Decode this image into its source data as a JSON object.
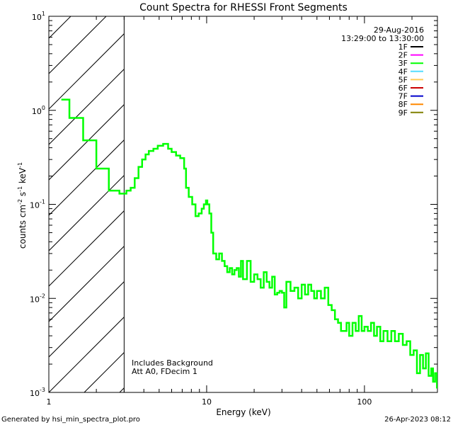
{
  "chart_data": {
    "type": "line",
    "title": "Count Spectra for RHESSI Front Segments",
    "xlabel": "Energy (keV)",
    "ylabel_parts": {
      "a": "counts cm",
      "b": "-2",
      "c": " s",
      "d": "-1",
      "e": " keV",
      "f": "-1"
    },
    "xscale": "log",
    "yscale": "log",
    "xlim": [
      1,
      290
    ],
    "ylim": [
      0.001,
      10
    ],
    "x_ticks": [
      {
        "value": 1,
        "label": "1"
      },
      {
        "value": 10,
        "label": "10"
      },
      {
        "value": 100,
        "label": "100"
      }
    ],
    "y_ticks": [
      {
        "value": 0.001,
        "base": "10",
        "exp": "-3"
      },
      {
        "value": 0.01,
        "base": "10",
        "exp": "-2"
      },
      {
        "value": 0.1,
        "base": "10",
        "exp": "-1"
      },
      {
        "value": 1,
        "base": "10",
        "exp": "0"
      },
      {
        "value": 10,
        "base": "10",
        "exp": "1"
      }
    ],
    "hatched_region": {
      "x_start": 1,
      "x_end": 3
    },
    "annotations": {
      "date": "29-Aug-2016",
      "time_range": "13:29:00 to 13:30:00",
      "note_line1": "Includes Background",
      "note_line2": "Att A0, FDecim 1"
    },
    "legend": {
      "placement": "top-right",
      "entries": [
        {
          "label": "1F",
          "color": "#000000"
        },
        {
          "label": "2F",
          "color": "#ff00ff"
        },
        {
          "label": "3F",
          "color": "#00ff00"
        },
        {
          "label": "4F",
          "color": "#55ddff"
        },
        {
          "label": "5F",
          "color": "#ffcc55"
        },
        {
          "label": "6F",
          "color": "#cc0000"
        },
        {
          "label": "7F",
          "color": "#0000cc"
        },
        {
          "label": "8F",
          "color": "#ff8800"
        },
        {
          "label": "9F",
          "color": "#808000"
        }
      ]
    },
    "series": [
      {
        "name": "3F",
        "color": "#00ff00",
        "points": [
          [
            1.2,
            1.3
          ],
          [
            1.35,
            1.3
          ],
          [
            1.35,
            0.83
          ],
          [
            1.65,
            0.83
          ],
          [
            1.65,
            0.48
          ],
          [
            2.0,
            0.48
          ],
          [
            2.0,
            0.24
          ],
          [
            2.4,
            0.24
          ],
          [
            2.4,
            0.14
          ],
          [
            2.8,
            0.14
          ],
          [
            2.8,
            0.13
          ],
          [
            3.0,
            0.13
          ],
          [
            3.1,
            0.14
          ],
          [
            3.3,
            0.15
          ],
          [
            3.5,
            0.19
          ],
          [
            3.7,
            0.25
          ],
          [
            3.9,
            0.3
          ],
          [
            4.1,
            0.34
          ],
          [
            4.3,
            0.37
          ],
          [
            4.6,
            0.39
          ],
          [
            4.9,
            0.42
          ],
          [
            5.3,
            0.44
          ],
          [
            5.7,
            0.39
          ],
          [
            6.0,
            0.36
          ],
          [
            6.4,
            0.33
          ],
          [
            6.8,
            0.31
          ],
          [
            7.2,
            0.24
          ],
          [
            7.4,
            0.15
          ],
          [
            7.7,
            0.12
          ],
          [
            8.1,
            0.1
          ],
          [
            8.5,
            0.075
          ],
          [
            8.9,
            0.08
          ],
          [
            9.3,
            0.09
          ],
          [
            9.6,
            0.1
          ],
          [
            9.9,
            0.11
          ],
          [
            10.1,
            0.1
          ],
          [
            10.4,
            0.08
          ],
          [
            10.7,
            0.05
          ],
          [
            11.0,
            0.03
          ],
          [
            11.5,
            0.026
          ],
          [
            12.0,
            0.03
          ],
          [
            12.5,
            0.025
          ],
          [
            13.0,
            0.022
          ],
          [
            13.5,
            0.019
          ],
          [
            14.0,
            0.021
          ],
          [
            14.5,
            0.018
          ],
          [
            15.0,
            0.02
          ],
          [
            15.5,
            0.021
          ],
          [
            16.0,
            0.017
          ],
          [
            16.5,
            0.025
          ],
          [
            17.0,
            0.016
          ],
          [
            18.0,
            0.025
          ],
          [
            19.0,
            0.015
          ],
          [
            20.0,
            0.018
          ],
          [
            21.0,
            0.016
          ],
          [
            22.0,
            0.013
          ],
          [
            23.0,
            0.019
          ],
          [
            24.0,
            0.015
          ],
          [
            25.0,
            0.013
          ],
          [
            26.0,
            0.017
          ],
          [
            27.0,
            0.011
          ],
          [
            28.0,
            0.0115
          ],
          [
            29.0,
            0.012
          ],
          [
            30.0,
            0.0115
          ],
          [
            31.0,
            0.008
          ],
          [
            32.0,
            0.015
          ],
          [
            34.0,
            0.012
          ],
          [
            36.0,
            0.013
          ],
          [
            38.0,
            0.01
          ],
          [
            40.0,
            0.014
          ],
          [
            42.0,
            0.011
          ],
          [
            44.0,
            0.014
          ],
          [
            46.0,
            0.012
          ],
          [
            48.0,
            0.01
          ],
          [
            50.0,
            0.012
          ],
          [
            53.0,
            0.01
          ],
          [
            56.0,
            0.013
          ],
          [
            59.0,
            0.0085
          ],
          [
            62.0,
            0.0075
          ],
          [
            65.0,
            0.006
          ],
          [
            68.0,
            0.0055
          ],
          [
            71.0,
            0.0045
          ],
          [
            74.0,
            0.0045
          ],
          [
            77.0,
            0.0055
          ],
          [
            80.0,
            0.004
          ],
          [
            84.0,
            0.0055
          ],
          [
            88.0,
            0.0045
          ],
          [
            92.0,
            0.0065
          ],
          [
            96.0,
            0.0045
          ],
          [
            100.0,
            0.005
          ],
          [
            105.0,
            0.0045
          ],
          [
            110.0,
            0.0055
          ],
          [
            115.0,
            0.004
          ],
          [
            120.0,
            0.005
          ],
          [
            126.0,
            0.0035
          ],
          [
            132.0,
            0.0045
          ],
          [
            140.0,
            0.0035
          ],
          [
            148.0,
            0.0045
          ],
          [
            156.0,
            0.0035
          ],
          [
            165.0,
            0.0042
          ],
          [
            175.0,
            0.0032
          ],
          [
            185.0,
            0.0035
          ],
          [
            195.0,
            0.0025
          ],
          [
            205.0,
            0.0028
          ],
          [
            215.0,
            0.0016
          ],
          [
            225.0,
            0.0025
          ],
          [
            235.0,
            0.0018
          ],
          [
            245.0,
            0.0026
          ],
          [
            255.0,
            0.0015
          ],
          [
            265.0,
            0.0018
          ],
          [
            272.0,
            0.0013
          ],
          [
            280.0,
            0.0016
          ],
          [
            288.0,
            0.0011
          ]
        ]
      }
    ]
  },
  "footer": {
    "left": "Generated by hsi_min_spectra_plot.pro",
    "right": "26-Apr-2023 08:12"
  }
}
